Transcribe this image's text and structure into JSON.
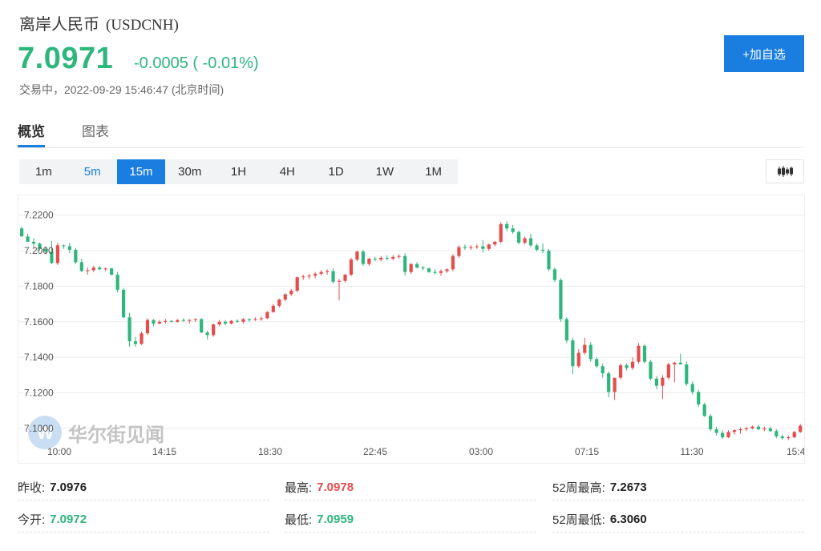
{
  "header": {
    "name": "离岸人民币",
    "code": "(USDCNH)",
    "price": "7.0971",
    "change": "-0.0005 ( -0.01%)",
    "status": "交易中，2022-09-29 15:46:47 (北京时间)",
    "add_button": "+加自选"
  },
  "tabs": [
    {
      "label": "概览",
      "active": true
    },
    {
      "label": "图表",
      "active": false
    }
  ],
  "timeframes": [
    {
      "label": "1m"
    },
    {
      "label": "5m",
      "hover": true
    },
    {
      "label": "15m",
      "active": true
    },
    {
      "label": "30m"
    },
    {
      "label": "1H"
    },
    {
      "label": "4H"
    },
    {
      "label": "1D"
    },
    {
      "label": "1W"
    },
    {
      "label": "1M"
    }
  ],
  "chart_type_icon": "candlestick-icon",
  "colors": {
    "up": "#e54d4d",
    "down": "#2eb67d",
    "accent": "#1a7ee0"
  },
  "watermark": "华尔街见闻",
  "chart_data": {
    "type": "candlestick",
    "y_ticks": [
      "7.2200",
      "7.2000",
      "7.1800",
      "7.1600",
      "7.1400",
      "7.1200",
      "7.1000"
    ],
    "ylim": [
      7.0932,
      7.2311
    ],
    "x_ticks": [
      "10:00",
      "14:15",
      "18:30",
      "22:45",
      "03:00",
      "07:15",
      "11:30",
      "15:4"
    ],
    "grid": true,
    "candles": [
      [
        7.2125,
        7.2135,
        7.2085,
        7.208
      ],
      [
        7.208,
        7.2095,
        7.2055,
        7.205
      ],
      [
        7.205,
        7.207,
        7.202,
        7.204
      ],
      [
        7.204,
        7.2045,
        7.2,
        7.201
      ],
      [
        7.201,
        7.2025,
        7.198,
        7.1995
      ],
      [
        7.1995,
        7.2055,
        7.1925,
        7.193
      ],
      [
        7.193,
        7.2045,
        7.192,
        7.203
      ],
      [
        7.203,
        7.2035,
        7.201,
        7.2025
      ],
      [
        7.2025,
        7.2045,
        7.1985,
        7.2005
      ],
      [
        7.2005,
        7.2015,
        7.1925,
        7.1935
      ],
      [
        7.1935,
        7.1955,
        7.188,
        7.1885
      ],
      [
        7.1885,
        7.1905,
        7.1865,
        7.189
      ],
      [
        7.189,
        7.1915,
        7.188,
        7.1905
      ],
      [
        7.1905,
        7.1915,
        7.189,
        7.1895
      ],
      [
        7.1895,
        7.1905,
        7.1885,
        7.19
      ],
      [
        7.19,
        7.1905,
        7.186,
        7.1865
      ],
      [
        7.1865,
        7.188,
        7.1765,
        7.178
      ],
      [
        7.178,
        7.179,
        7.162,
        7.1625
      ],
      [
        7.1625,
        7.165,
        7.146,
        7.149
      ],
      [
        7.149,
        7.1515,
        7.146,
        7.1475
      ],
      [
        7.1475,
        7.1545,
        7.147,
        7.1535
      ],
      [
        7.1535,
        7.162,
        7.1525,
        7.161
      ],
      [
        7.161,
        7.1615,
        7.1575,
        7.159
      ],
      [
        7.159,
        7.161,
        7.1585,
        7.16
      ],
      [
        7.16,
        7.1615,
        7.159,
        7.1605
      ],
      [
        7.1605,
        7.161,
        7.1595,
        7.16
      ],
      [
        7.16,
        7.1615,
        7.1595,
        7.161
      ],
      [
        7.161,
        7.162,
        7.16,
        7.1605
      ],
      [
        7.1605,
        7.1615,
        7.159,
        7.161
      ],
      [
        7.161,
        7.162,
        7.16,
        7.1615
      ],
      [
        7.1615,
        7.162,
        7.1535,
        7.154
      ],
      [
        7.154,
        7.155,
        7.15,
        7.1525
      ],
      [
        7.1525,
        7.159,
        7.1515,
        7.1585
      ],
      [
        7.1585,
        7.161,
        7.1575,
        7.16
      ],
      [
        7.16,
        7.161,
        7.158,
        7.159
      ],
      [
        7.159,
        7.161,
        7.1585,
        7.1605
      ],
      [
        7.1605,
        7.1615,
        7.1595,
        7.16
      ],
      [
        7.16,
        7.162,
        7.159,
        7.1615
      ],
      [
        7.1615,
        7.162,
        7.16,
        7.161
      ],
      [
        7.161,
        7.1625,
        7.1605,
        7.1615
      ],
      [
        7.1615,
        7.163,
        7.1605,
        7.162
      ],
      [
        7.162,
        7.166,
        7.1615,
        7.1655
      ],
      [
        7.1655,
        7.17,
        7.165,
        7.169
      ],
      [
        7.169,
        7.173,
        7.168,
        7.1725
      ],
      [
        7.1725,
        7.176,
        7.1715,
        7.1755
      ],
      [
        7.1755,
        7.1785,
        7.1745,
        7.1775
      ],
      [
        7.1775,
        7.1855,
        7.1765,
        7.185
      ],
      [
        7.185,
        7.1865,
        7.1835,
        7.1855
      ],
      [
        7.1855,
        7.187,
        7.184,
        7.186
      ],
      [
        7.186,
        7.188,
        7.1845,
        7.187
      ],
      [
        7.187,
        7.189,
        7.186,
        7.188
      ],
      [
        7.188,
        7.1895,
        7.1865,
        7.1885
      ],
      [
        7.1885,
        7.19,
        7.1815,
        7.1825
      ],
      [
        7.1825,
        7.184,
        7.172,
        7.183
      ],
      [
        7.183,
        7.187,
        7.182,
        7.1865
      ],
      [
        7.1865,
        7.196,
        7.1855,
        7.195
      ],
      [
        7.195,
        7.2,
        7.194,
        7.1995
      ],
      [
        7.1995,
        7.2005,
        7.1915,
        7.1925
      ],
      [
        7.1925,
        7.196,
        7.1915,
        7.1955
      ],
      [
        7.1955,
        7.1965,
        7.194,
        7.195
      ],
      [
        7.195,
        7.197,
        7.194,
        7.196
      ],
      [
        7.196,
        7.1975,
        7.1945,
        7.1955
      ],
      [
        7.1955,
        7.1975,
        7.1945,
        7.1965
      ],
      [
        7.1965,
        7.198,
        7.1955,
        7.197
      ],
      [
        7.197,
        7.1985,
        7.186,
        7.188
      ],
      [
        7.188,
        7.193,
        7.187,
        7.1925
      ],
      [
        7.1925,
        7.1935,
        7.19,
        7.1905
      ],
      [
        7.1905,
        7.1915,
        7.189,
        7.19
      ],
      [
        7.19,
        7.1905,
        7.1875,
        7.188
      ],
      [
        7.188,
        7.1895,
        7.1865,
        7.1875
      ],
      [
        7.1875,
        7.1895,
        7.186,
        7.1885
      ],
      [
        7.1885,
        7.19,
        7.1875,
        7.1895
      ],
      [
        7.1895,
        7.198,
        7.1885,
        7.197
      ],
      [
        7.197,
        7.203,
        7.196,
        7.202
      ],
      [
        7.202,
        7.2035,
        7.2005,
        7.2015
      ],
      [
        7.2015,
        7.203,
        7.2005,
        7.202
      ],
      [
        7.202,
        7.2035,
        7.201,
        7.2025
      ],
      [
        7.2025,
        7.206,
        7.199,
        7.201
      ],
      [
        7.201,
        7.204,
        7.2,
        7.2035
      ],
      [
        7.2035,
        7.2055,
        7.2025,
        7.205
      ],
      [
        7.205,
        7.216,
        7.204,
        7.215
      ],
      [
        7.215,
        7.2165,
        7.211,
        7.2125
      ],
      [
        7.2125,
        7.2145,
        7.2095,
        7.2105
      ],
      [
        7.2105,
        7.2115,
        7.2035,
        7.2045
      ],
      [
        7.2045,
        7.208,
        7.2035,
        7.207
      ],
      [
        7.207,
        7.2095,
        7.202,
        7.203
      ],
      [
        7.203,
        7.204,
        7.1995,
        7.2005
      ],
      [
        7.2005,
        7.204,
        7.1985,
        7.2
      ],
      [
        7.2,
        7.201,
        7.1885,
        7.1895
      ],
      [
        7.1895,
        7.1905,
        7.1825,
        7.1835
      ],
      [
        7.1835,
        7.1845,
        7.16,
        7.1615
      ],
      [
        7.1615,
        7.1625,
        7.148,
        7.1495
      ],
      [
        7.1495,
        7.151,
        7.1305,
        7.135
      ],
      [
        7.135,
        7.1445,
        7.134,
        7.1425
      ],
      [
        7.1425,
        7.151,
        7.1415,
        7.147
      ],
      [
        7.147,
        7.1485,
        7.1375,
        7.139
      ],
      [
        7.139,
        7.14,
        7.134,
        7.135
      ],
      [
        7.135,
        7.1365,
        7.1285,
        7.131
      ],
      [
        7.131,
        7.132,
        7.1175,
        7.1205
      ],
      [
        7.1205,
        7.1285,
        7.116,
        7.1285
      ],
      [
        7.1285,
        7.1365,
        7.1275,
        7.1355
      ],
      [
        7.1355,
        7.1365,
        7.1325,
        7.134
      ],
      [
        7.134,
        7.14,
        7.133,
        7.1375
      ],
      [
        7.1375,
        7.148,
        7.1365,
        7.1465
      ],
      [
        7.1465,
        7.1475,
        7.1365,
        7.1375
      ],
      [
        7.1375,
        7.1385,
        7.127,
        7.128
      ],
      [
        7.128,
        7.1295,
        7.122,
        7.124
      ],
      [
        7.124,
        7.13,
        7.1165,
        7.1285
      ],
      [
        7.1285,
        7.137,
        7.1275,
        7.136
      ],
      [
        7.136,
        7.1375,
        7.126,
        7.137
      ],
      [
        7.137,
        7.142,
        7.136,
        7.136
      ],
      [
        7.136,
        7.1375,
        7.124,
        7.125
      ],
      [
        7.125,
        7.1265,
        7.119,
        7.1205
      ],
      [
        7.1205,
        7.1215,
        7.112,
        7.1135
      ],
      [
        7.1135,
        7.1145,
        7.1065,
        7.107
      ],
      [
        7.107,
        7.108,
        7.0985,
        7.0995
      ],
      [
        7.0995,
        7.101,
        7.096,
        7.0975
      ],
      [
        7.0975,
        7.099,
        7.094,
        7.095
      ],
      [
        7.095,
        7.099,
        7.0945,
        7.098
      ],
      [
        7.098,
        7.0995,
        7.0965,
        7.099
      ],
      [
        7.099,
        7.1005,
        7.097,
        7.0995
      ],
      [
        7.0995,
        7.101,
        7.0985,
        7.1
      ],
      [
        7.1,
        7.1015,
        7.0995,
        7.101
      ],
      [
        7.101,
        7.102,
        7.099,
        7.0995
      ],
      [
        7.0995,
        7.101,
        7.0985,
        7.1
      ],
      [
        7.1,
        7.101,
        7.098,
        7.0985
      ],
      [
        7.0985,
        7.0995,
        7.0945,
        7.0955
      ],
      [
        7.0955,
        7.0965,
        7.0935,
        7.0945
      ],
      [
        7.0945,
        7.096,
        7.0935,
        7.095
      ],
      [
        7.095,
        7.0985,
        7.0945,
        7.098
      ],
      [
        7.098,
        7.1025,
        7.0975,
        7.1015
      ],
      [
        7.1015,
        7.102,
        7.098,
        7.099
      ],
      [
        7.099,
        7.1,
        7.0975,
        7.0985
      ],
      [
        7.0985,
        7.0995,
        7.0975,
        7.099
      ],
      [
        7.099,
        7.0995,
        7.0975,
        7.098
      ],
      [
        7.098,
        7.099,
        7.097,
        7.0985
      ],
      [
        7.0985,
        7.099,
        7.097,
        7.0975
      ]
    ]
  },
  "stats": [
    [
      {
        "label": "昨收:",
        "value": "7.0976",
        "color": "black"
      },
      {
        "label": "最高:",
        "value": "7.0978",
        "color": "red"
      },
      {
        "label": "52周最高:",
        "value": "7.2673",
        "color": "black"
      }
    ],
    [
      {
        "label": "今开:",
        "value": "7.0972",
        "color": "green"
      },
      {
        "label": "最低:",
        "value": "7.0959",
        "color": "green"
      },
      {
        "label": "52周最低:",
        "value": "6.3060",
        "color": "black"
      }
    ]
  ]
}
